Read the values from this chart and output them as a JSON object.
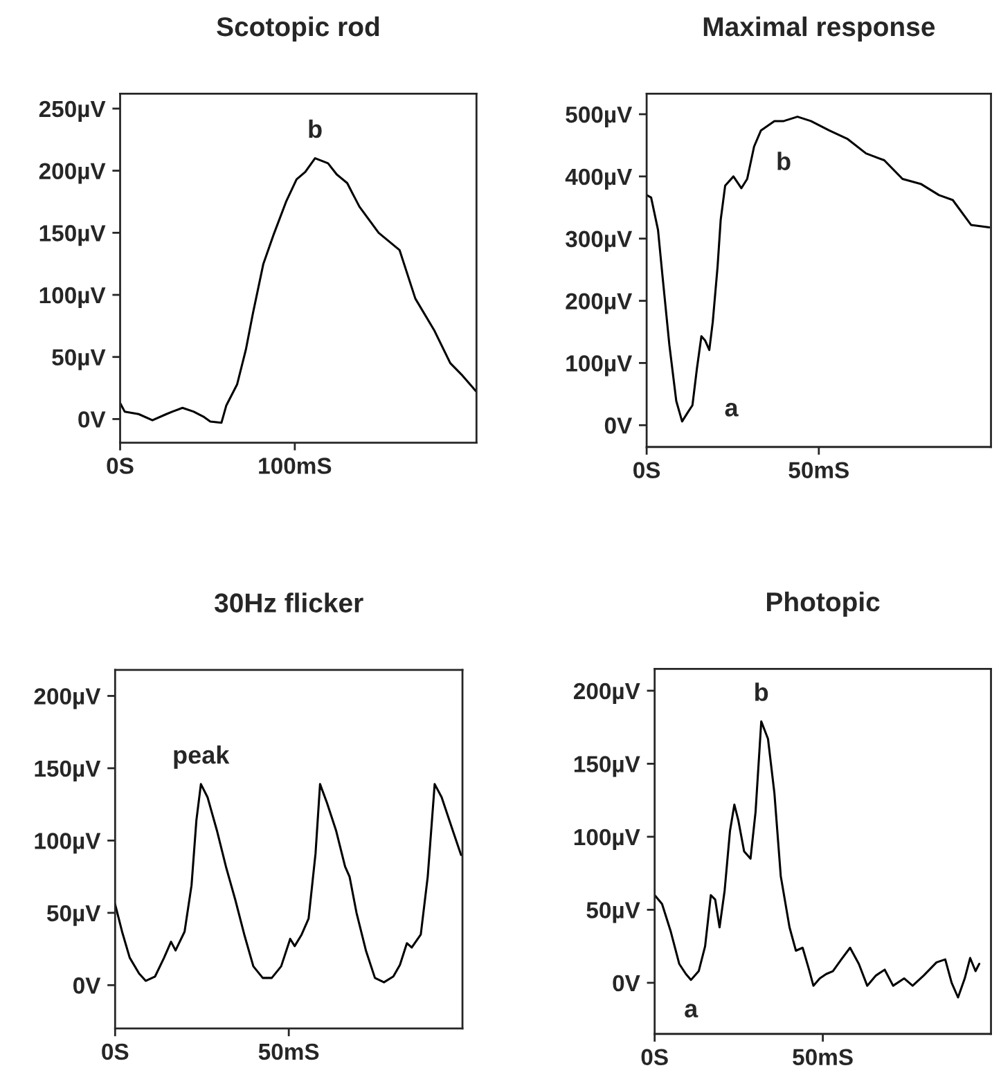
{
  "chart_data": [
    {
      "type": "line",
      "title": "Scotopic rod",
      "xlim": [
        0,
        204
      ],
      "ylim": [
        -19,
        262
      ],
      "xticks": [
        {
          "value": 0,
          "label": "0S"
        },
        {
          "value": 100,
          "label": "100mS"
        }
      ],
      "yticks": [
        {
          "value": 0,
          "label": "0V"
        },
        {
          "value": 50,
          "label": "50µV"
        },
        {
          "value": 100,
          "label": "100µV"
        },
        {
          "value": 150,
          "label": "150µV"
        },
        {
          "value": 200,
          "label": "200µV"
        },
        {
          "value": 250,
          "label": "250µV"
        }
      ],
      "grid": false,
      "legend": false,
      "series": [
        {
          "color": "#000000",
          "x": [
            0,
            2.6,
            10.6,
            18.5,
            26.5,
            30,
            35.7,
            42,
            47.6,
            51.6,
            58,
            60.8,
            67,
            72,
            76,
            82,
            88,
            95,
            101,
            106,
            111.6,
            119,
            124,
            130,
            137,
            148,
            160,
            169,
            180,
            189,
            196,
            204
          ],
          "values": [
            13,
            6,
            4,
            -1,
            4,
            6,
            9,
            6,
            2,
            -2,
            -3,
            11,
            28,
            56,
            85,
            125,
            149,
            175,
            193,
            199,
            210,
            206,
            197,
            190,
            171,
            150,
            136,
            97,
            71,
            45,
            35,
            22
          ]
        }
      ],
      "annotations": [
        {
          "text": "b",
          "x": 111.6,
          "y": 210
        }
      ]
    },
    {
      "type": "line",
      "title": "Maximal response",
      "xlim": [
        0,
        100
      ],
      "ylim": [
        -35,
        533
      ],
      "xticks": [
        {
          "value": 0,
          "label": "0S"
        },
        {
          "value": 50,
          "label": "50mS"
        }
      ],
      "yticks": [
        {
          "value": 0,
          "label": "0V"
        },
        {
          "value": 100,
          "label": "100µV"
        },
        {
          "value": 200,
          "label": "200µV"
        },
        {
          "value": 300,
          "label": "300µV"
        },
        {
          "value": 400,
          "label": "400µV"
        },
        {
          "value": 500,
          "label": "500µV"
        }
      ],
      "grid": false,
      "legend": false,
      "series": [
        {
          "color": "#000000",
          "x": [
            0,
            1.3,
            3.3,
            4.6,
            6.6,
            8.6,
            10.3,
            12,
            13.3,
            14.6,
            15.9,
            17,
            18.2,
            19.2,
            20.6,
            21.5,
            22.8,
            25.2,
            27.5,
            29.2,
            31.2,
            33.2,
            37.1,
            39.8,
            43.8,
            47.7,
            53,
            58.4,
            63.7,
            69,
            74.3,
            79.6,
            84.9,
            88.9,
            94.2,
            99.5
          ],
          "values": [
            370,
            366,
            314,
            240,
            129,
            39,
            6,
            21,
            32,
            91,
            143,
            136,
            121,
            166,
            255,
            330,
            385,
            400,
            381,
            396,
            448,
            474,
            489,
            489,
            496,
            489,
            474,
            460,
            437,
            426,
            396,
            388,
            370,
            362,
            322,
            318
          ]
        }
      ],
      "annotations": [
        {
          "text": "a",
          "x": 10.3,
          "y": 6
        },
        {
          "text": "b",
          "x": 39.8,
          "y": 489
        }
      ]
    },
    {
      "type": "line",
      "title": "30Hz flicker",
      "xlim": [
        0,
        100
      ],
      "ylim": [
        -30,
        218
      ],
      "xticks": [
        {
          "value": 0,
          "label": "0S"
        },
        {
          "value": 50,
          "label": "50mS"
        }
      ],
      "yticks": [
        {
          "value": 0,
          "label": "0V"
        },
        {
          "value": 50,
          "label": "50µV"
        },
        {
          "value": 100,
          "label": "100µV"
        },
        {
          "value": 150,
          "label": "150µV"
        },
        {
          "value": 200,
          "label": "200µV"
        }
      ],
      "grid": false,
      "legend": false,
      "series": [
        {
          "color": "#000000",
          "x": [
            0,
            2,
            4.2,
            6.9,
            8.8,
            11.5,
            14.1,
            16.1,
            17.4,
            20,
            22,
            23.4,
            24.7,
            26.6,
            29.3,
            31.9,
            34.6,
            37.3,
            39.8,
            42.5,
            45.1,
            47.8,
            50.4,
            51.7,
            53.7,
            55.7,
            57.7,
            59,
            61,
            63.6,
            66.2,
            67.5,
            69.5,
            72.2,
            74.8,
            77.4,
            80.1,
            82,
            84,
            85.4,
            88,
            90,
            92,
            94,
            97.2,
            99.6
          ],
          "values": [
            56,
            37,
            19,
            8,
            3,
            6,
            19,
            30,
            24,
            37,
            69,
            114,
            139,
            130,
            107,
            82,
            59,
            34,
            13,
            5,
            5,
            13,
            32,
            27,
            35,
            46,
            91,
            139,
            126,
            107,
            82,
            75,
            50,
            24,
            5,
            2,
            6,
            14,
            29,
            26,
            35,
            75,
            139,
            130,
            107,
            90
          ]
        }
      ],
      "annotations": [
        {
          "text": "peak",
          "x": 24.7,
          "y": 139
        }
      ]
    },
    {
      "type": "line",
      "title": "Photopic",
      "xlim": [
        0,
        100
      ],
      "ylim": [
        -35,
        215
      ],
      "xticks": [
        {
          "value": 0,
          "label": "0S"
        },
        {
          "value": 50,
          "label": "50mS"
        }
      ],
      "yticks": [
        {
          "value": 0,
          "label": "0V"
        },
        {
          "value": 50,
          "label": "50µV"
        },
        {
          "value": 100,
          "label": "100µV"
        },
        {
          "value": 150,
          "label": "150µV"
        },
        {
          "value": 200,
          "label": "200µV"
        }
      ],
      "grid": false,
      "legend": false,
      "series": [
        {
          "color": "#000000",
          "x": [
            0,
            2.2,
            4.8,
            7.3,
            9.3,
            10.8,
            13.1,
            15,
            16.7,
            18,
            19.3,
            20.8,
            22.4,
            23.7,
            24.9,
            26.6,
            28.5,
            30,
            31.7,
            33.7,
            35.6,
            37.5,
            40.1,
            42,
            44,
            45.9,
            47.2,
            49.1,
            51,
            53,
            55.5,
            58.1,
            60.7,
            63.2,
            65.8,
            68.4,
            70.9,
            74.2,
            76.7,
            80,
            83.8,
            86.4,
            88.3,
            90.2,
            92.2,
            93.8,
            95.4,
            96.5
          ],
          "values": [
            60,
            54,
            35,
            13,
            6,
            2,
            8,
            25,
            60,
            57,
            38,
            63,
            104,
            122,
            111,
            90,
            85,
            117,
            179,
            167,
            130,
            73,
            38,
            22,
            24,
            9,
            -2,
            3,
            6,
            8,
            16,
            24,
            13,
            -2,
            5,
            9,
            -2,
            3,
            -2,
            5,
            14,
            16,
            0,
            -10,
            3,
            17,
            8,
            13
          ]
        }
      ],
      "annotations": [
        {
          "text": "a",
          "x": 10.8,
          "y": 2
        },
        {
          "text": "b",
          "x": 31.7,
          "y": 179
        }
      ]
    }
  ]
}
